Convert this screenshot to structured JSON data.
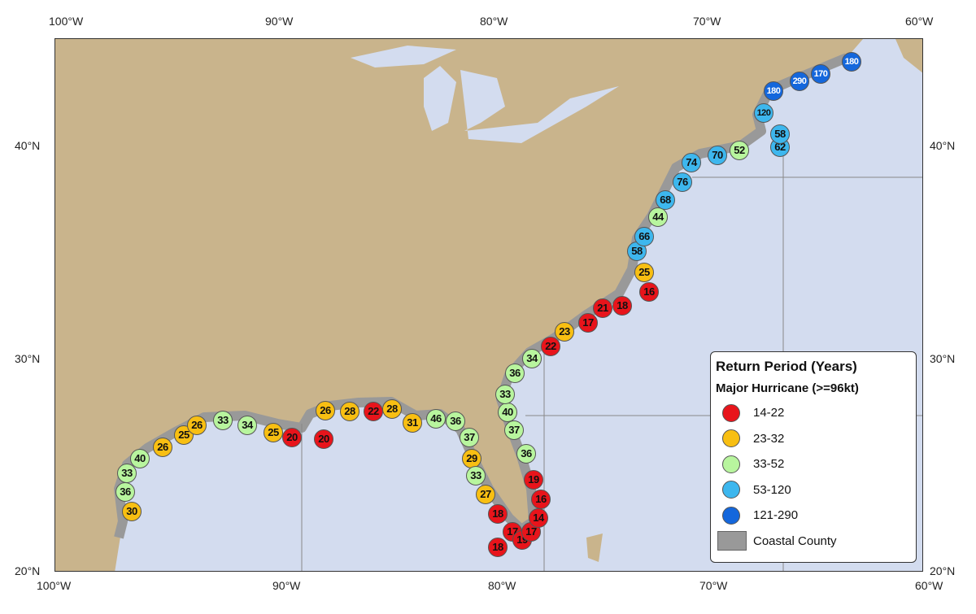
{
  "axes": {
    "top": [
      "100°W",
      "90°W",
      "80°W",
      "70°W",
      "60°W"
    ],
    "bottom": [
      "100°W",
      "90°W",
      "80°W",
      "70°W",
      "60°W"
    ],
    "left": [
      "40°N",
      "30°N",
      "20°N"
    ],
    "right": [
      "40°N",
      "30°N",
      "20°N"
    ]
  },
  "colors": {
    "c1": "#e8141b",
    "c2": "#f8bf12",
    "c3": "#b8f59e",
    "c4": "#3db7ee",
    "c5": "#1467dc",
    "land": "#c9b48c",
    "water": "#d3dcef",
    "county": "#999999"
  },
  "legend": {
    "title": "Return Period (Years)",
    "subtitle": "Major Hurricane (>=96kt)",
    "items": [
      {
        "label": "14-22",
        "cls": "c1"
      },
      {
        "label": "23-32",
        "cls": "c2"
      },
      {
        "label": "33-52",
        "cls": "c3"
      },
      {
        "label": "53-120",
        "cls": "c4"
      },
      {
        "label": "121-290",
        "cls": "c5"
      }
    ],
    "county_label": "Coastal County"
  },
  "markers": [
    "30",
    "36",
    "33",
    "40",
    "26",
    "25",
    "26",
    "33",
    "34",
    "25",
    "20",
    "20",
    "26",
    "28",
    "22",
    "28",
    "31",
    "46",
    "36",
    "37",
    "29",
    "33",
    "27",
    "18",
    "17",
    "19",
    "17",
    "14",
    "16",
    "19",
    "18",
    "36",
    "37",
    "40",
    "33",
    "36",
    "34",
    "22",
    "23",
    "17",
    "21",
    "18",
    "16",
    "25",
    "58",
    "66",
    "44",
    "68",
    "76",
    "74",
    "70",
    "52",
    "62",
    "58",
    "120",
    "180",
    "290",
    "170",
    "180"
  ]
}
